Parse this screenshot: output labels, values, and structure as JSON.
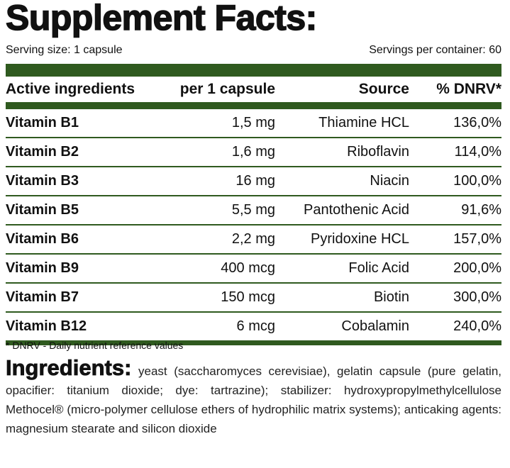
{
  "header": {
    "title": "Supplement Facts:",
    "serving_size": "Serving size: 1 capsule",
    "servings_per_container": "Servings per container: 60"
  },
  "table": {
    "columns": [
      "Active ingredients",
      "per 1 capsule",
      "Source",
      "% DNRV*"
    ],
    "rows": [
      [
        "Vitamin B1",
        "1,5 mg",
        "Thiamine HCL",
        "136,0%"
      ],
      [
        "Vitamin B2",
        "1,6 mg",
        "Riboflavin",
        "114,0%"
      ],
      [
        "Vitamin B3",
        "16 mg",
        "Niacin",
        "100,0%"
      ],
      [
        "Vitamin B5",
        "5,5 mg",
        "Pantothenic Acid",
        "91,6%"
      ],
      [
        "Vitamin B6",
        "2,2 mg",
        "Pyridoxine HCL",
        "157,0%"
      ],
      [
        "Vitamin B9",
        "400 mcg",
        "Folic Acid",
        "200,0%"
      ],
      [
        "Vitamin B7",
        "150 mcg",
        "Biotin",
        "300,0%"
      ],
      [
        "Vitamin B12",
        "6 mcg",
        "Cobalamin",
        "240,0%"
      ]
    ]
  },
  "footnote": "* DNRV - Daily nutrient reference values",
  "ingredients": {
    "heading": "Ingredients:",
    "text": "yeast (saccharomyces cerevisiae), gelatin capsule (pure gelatin, opacifier: titanium dioxide; dye: tartrazine); stabilizer: hydroxypropylmethylcellulose Methocel® (micro-polymer cellulose ethers of hydrophilic matrix systems); anticaking agents: magnesium stearate and silicon dioxide"
  }
}
